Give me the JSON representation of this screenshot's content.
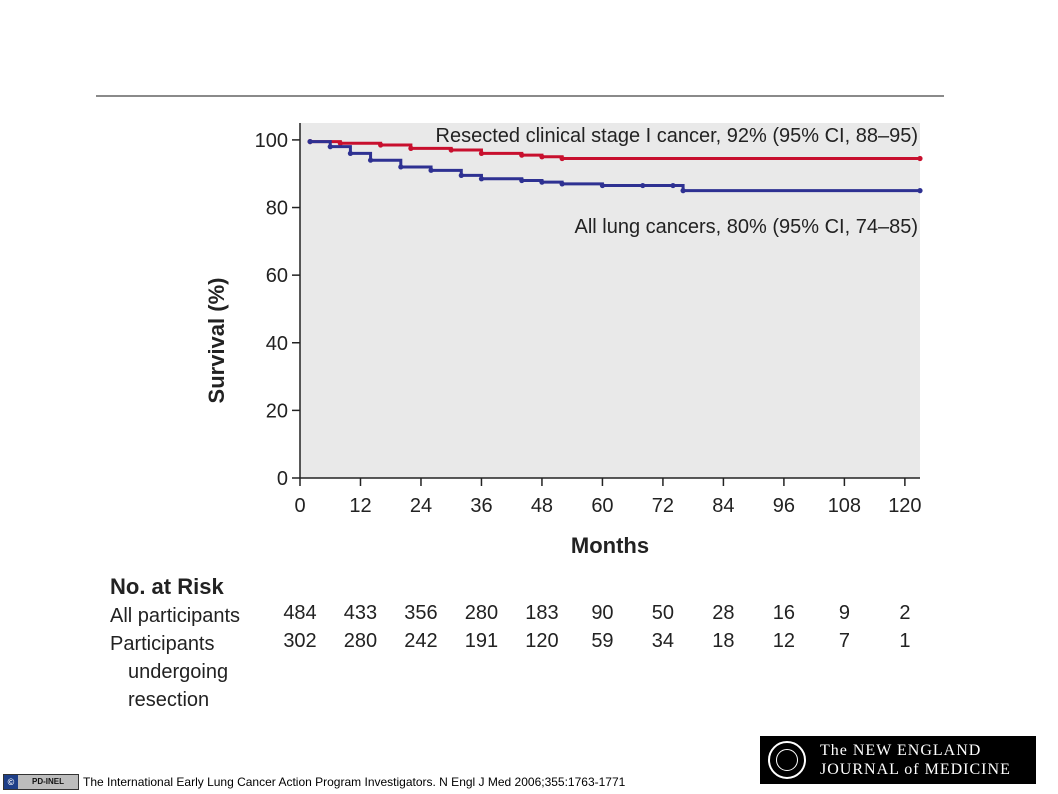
{
  "chart_data": {
    "type": "line",
    "xlabel": "Months",
    "ylabel": "Survival (%)",
    "xlim": [
      0,
      123
    ],
    "ylim": [
      0,
      105
    ],
    "x_ticks": [
      0,
      12,
      24,
      36,
      48,
      60,
      72,
      84,
      96,
      108,
      120
    ],
    "y_ticks": [
      0,
      20,
      40,
      60,
      80,
      100
    ],
    "plot_background": "#e9e9e9",
    "series": [
      {
        "name": "Resected clinical stage I cancer, 92% (95% CI, 88–95)",
        "color": "#c8102e",
        "x": [
          2,
          8,
          16,
          22,
          30,
          36,
          44,
          48,
          52,
          123
        ],
        "y": [
          99.5,
          99,
          98.5,
          97.5,
          97,
          96,
          95.5,
          95,
          94.5,
          94.5
        ]
      },
      {
        "name": "All lung cancers, 80% (95% CI, 74–85)",
        "color": "#2e3192",
        "x": [
          2,
          6,
          10,
          14,
          20,
          26,
          32,
          36,
          44,
          48,
          52,
          60,
          68,
          74,
          76,
          123
        ],
        "y": [
          99.5,
          98,
          96,
          94,
          92,
          91,
          89.5,
          88.5,
          88,
          87.5,
          87,
          86.5,
          86.5,
          86.5,
          85,
          85
        ]
      }
    ]
  },
  "risk_table": {
    "title": "No. at Risk",
    "months": [
      0,
      12,
      24,
      36,
      48,
      60,
      72,
      84,
      96,
      108,
      120
    ],
    "rows": [
      {
        "label": "All participants",
        "values": [
          "484",
          "433",
          "356",
          "280",
          "183",
          "90",
          "50",
          "28",
          "16",
          "9",
          "2"
        ]
      },
      {
        "label_lines": [
          "Participants",
          "undergoing",
          "resection"
        ],
        "values": [
          "302",
          "280",
          "242",
          "191",
          "120",
          "59",
          "34",
          "18",
          "12",
          "7",
          "1"
        ]
      }
    ]
  },
  "footer": {
    "badge_cc": "©",
    "badge_pd": "PD-INEL",
    "credit": "The International Early Lung Cancer Action Program Investigators. N Engl J Med 2006;355:1763-1771",
    "journal_line1": "The NEW ENGLAND",
    "journal_line2": "JOURNAL of MEDICINE"
  }
}
